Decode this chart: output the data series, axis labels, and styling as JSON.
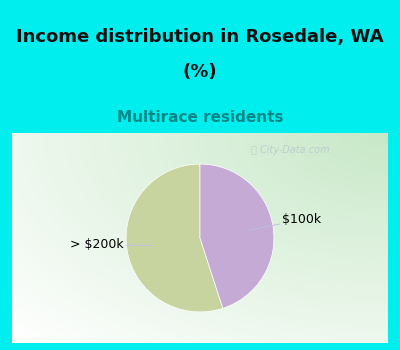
{
  "title_line1": "Income distribution in Rosedale, WA",
  "title_line2": "(%)",
  "subtitle": "Multirace residents",
  "title_fontsize": 13,
  "subtitle_fontsize": 11,
  "slices": [
    0.55,
    0.45
  ],
  "labels": [
    "> $200k",
    "$100k"
  ],
  "colors": [
    "#c8d4a0",
    "#c4aad4"
  ],
  "cyan_bg": "#00eeee",
  "chart_bg": "#f0f8f0",
  "label_fontsize": 9,
  "watermark": "City-Data.com",
  "start_angle": 90,
  "line_color": "#c0c0e0",
  "title_color": "#111111",
  "subtitle_color": "#008888"
}
